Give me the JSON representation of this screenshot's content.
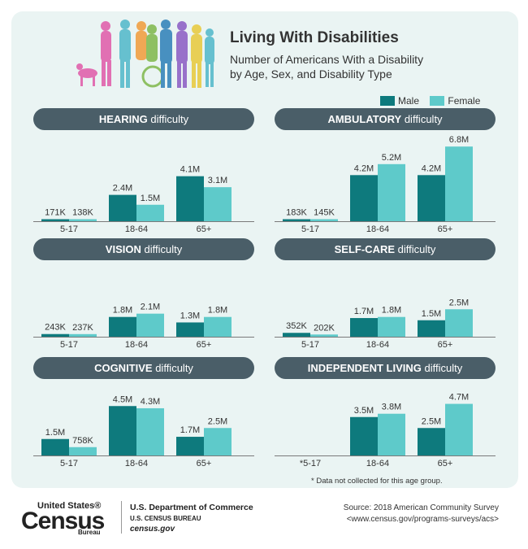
{
  "title": "Living With Disabilities",
  "subtitle_line1": "Number of Americans With a Disability",
  "subtitle_line2": "by Age, Sex, and Disability Type",
  "legend": {
    "male": "Male",
    "female": "Female"
  },
  "colors": {
    "male": "#0e7a7d",
    "female": "#5ecaca",
    "header": "#4a5e68",
    "background": "#eaf4f3"
  },
  "footnote": "* Data not collected for this age group.",
  "footer": {
    "logo_top": "United States®",
    "logo_main": "Census",
    "logo_bottom": "Bureau",
    "dept_line1": "U.S. Department of Commerce",
    "dept_line2": "U.S. CENSUS BUREAU",
    "dept_line3": "census.gov",
    "source_line1": "Source: 2018 American Community Survey",
    "source_line2": "<www.census.gov/programs-surveys/acs>"
  },
  "chart_data": [
    {
      "type": "bar",
      "title_bold": "HEARING",
      "title_rest": "difficulty",
      "categories": [
        "5-17",
        "18-64",
        "65+"
      ],
      "series": [
        {
          "name": "Male",
          "values": [
            0.171,
            2.4,
            4.1
          ],
          "labels": [
            "171K",
            "2.4M",
            "4.1M"
          ]
        },
        {
          "name": "Female",
          "values": [
            0.138,
            1.5,
            3.1
          ],
          "labels": [
            "138K",
            "1.5M",
            "3.1M"
          ]
        }
      ]
    },
    {
      "type": "bar",
      "title_bold": "AMBULATORY",
      "title_rest": "difficulty",
      "categories": [
        "5-17",
        "18-64",
        "65+"
      ],
      "series": [
        {
          "name": "Male",
          "values": [
            0.183,
            4.2,
            4.2
          ],
          "labels": [
            "183K",
            "4.2M",
            "4.2M"
          ]
        },
        {
          "name": "Female",
          "values": [
            0.145,
            5.2,
            6.8
          ],
          "labels": [
            "145K",
            "5.2M",
            "6.8M"
          ]
        }
      ]
    },
    {
      "type": "bar",
      "title_bold": "VISION",
      "title_rest": "difficulty",
      "categories": [
        "5-17",
        "18-64",
        "65+"
      ],
      "series": [
        {
          "name": "Male",
          "values": [
            0.243,
            1.8,
            1.3
          ],
          "labels": [
            "243K",
            "1.8M",
            "1.3M"
          ]
        },
        {
          "name": "Female",
          "values": [
            0.237,
            2.1,
            1.8
          ],
          "labels": [
            "237K",
            "2.1M",
            "1.8M"
          ]
        }
      ]
    },
    {
      "type": "bar",
      "title_bold": "SELF-CARE",
      "title_rest": "difficulty",
      "categories": [
        "5-17",
        "18-64",
        "65+"
      ],
      "series": [
        {
          "name": "Male",
          "values": [
            0.352,
            1.7,
            1.5
          ],
          "labels": [
            "352K",
            "1.7M",
            "1.5M"
          ]
        },
        {
          "name": "Female",
          "values": [
            0.202,
            1.8,
            2.5
          ],
          "labels": [
            "202K",
            "1.8M",
            "2.5M"
          ]
        }
      ]
    },
    {
      "type": "bar",
      "title_bold": "COGNITIVE",
      "title_rest": "difficulty",
      "categories": [
        "5-17",
        "18-64",
        "65+"
      ],
      "series": [
        {
          "name": "Male",
          "values": [
            1.5,
            4.5,
            1.7
          ],
          "labels": [
            "1.5M",
            "4.5M",
            "1.7M"
          ]
        },
        {
          "name": "Female",
          "values": [
            0.758,
            4.3,
            2.5
          ],
          "labels": [
            "758K",
            "4.3M",
            "2.5M"
          ]
        }
      ]
    },
    {
      "type": "bar",
      "title_bold": "INDEPENDENT LIVING",
      "title_rest": "difficulty",
      "categories": [
        "*5-17",
        "18-64",
        "65+"
      ],
      "series": [
        {
          "name": "Male",
          "values": [
            null,
            3.5,
            2.5
          ],
          "labels": [
            "",
            "3.5M",
            "2.5M"
          ]
        },
        {
          "name": "Female",
          "values": [
            null,
            3.8,
            4.7
          ],
          "labels": [
            "",
            "3.8M",
            "4.7M"
          ]
        }
      ]
    }
  ]
}
